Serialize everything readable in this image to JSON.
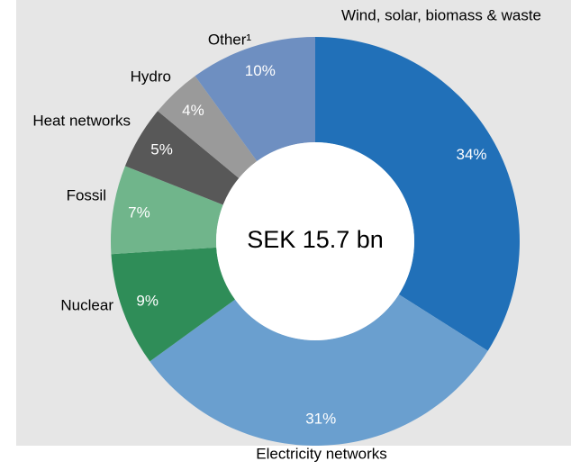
{
  "chart_data": {
    "type": "donut",
    "center_label": "SEK 15.7 bn",
    "categories": [
      "Wind, solar, biomass & waste",
      "Electricity networks",
      "Nuclear",
      "Fossil",
      "Heat networks",
      "Hydro",
      "Other¹"
    ],
    "values": [
      34,
      31,
      9,
      7,
      5,
      4,
      10
    ],
    "value_labels": [
      "34%",
      "31%",
      "9%",
      "7%",
      "5%",
      "4%",
      "10%"
    ],
    "colors": [
      "#2170b8",
      "#6a9fcf",
      "#2f8d58",
      "#70b58b",
      "#585858",
      "#9a9a9a",
      "#6e8fc1"
    ]
  }
}
